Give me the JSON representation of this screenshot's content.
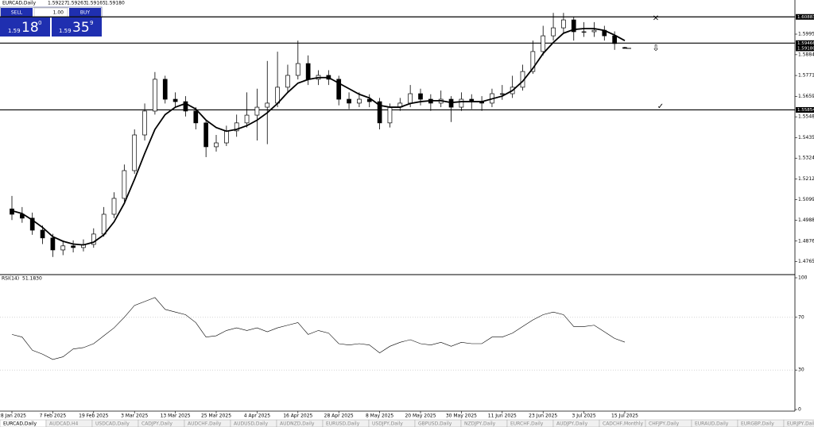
{
  "header": {
    "symbol": "EURCAD,Daily",
    "ohlc": [
      "1.59227",
      "1.59263",
      "1.59165",
      "1.59180"
    ]
  },
  "trade_panel": {
    "sell": "SELL",
    "buy": "BUY",
    "volume": "1.00",
    "sell_price": {
      "prefix": "1.59",
      "big": "18",
      "small": "0"
    },
    "buy_price": {
      "prefix": "1.59",
      "big": "35",
      "small": "9"
    }
  },
  "chart": {
    "type": "candlestick",
    "ylim": [
      1.4699,
      1.6171
    ],
    "yticks": [
      {
        "value": 1.5995,
        "label": "1.59950"
      },
      {
        "value": 1.5884,
        "label": "1.58840"
      },
      {
        "value": 1.57715,
        "label": "1.57715"
      },
      {
        "value": 1.5659,
        "label": "1.56590"
      },
      {
        "value": 1.5548,
        "label": "1.55480"
      },
      {
        "value": 1.54355,
        "label": "1.54355"
      },
      {
        "value": 1.53245,
        "label": "1.53245"
      },
      {
        "value": 1.5212,
        "label": "1.52120"
      },
      {
        "value": 1.50995,
        "label": "1.50995"
      },
      {
        "value": 1.49885,
        "label": "1.49885"
      },
      {
        "value": 1.4876,
        "label": "1.48760"
      },
      {
        "value": 1.4765,
        "label": "1.47650"
      }
    ],
    "levels": [
      {
        "value": 1.60883,
        "label": "1.60883"
      },
      {
        "value": 1.59466,
        "label": "1.59466"
      },
      {
        "value": 1.55854,
        "label": "1.55854"
      }
    ],
    "current_price": {
      "value": 1.5918,
      "label": "1.59180"
    },
    "dates": [
      "28 Jan 2025",
      null,
      null,
      null,
      "7 Feb 2025",
      null,
      null,
      null,
      "19 Feb 2025",
      null,
      null,
      null,
      "3 Mar 2025",
      null,
      null,
      null,
      "13 Mar 2025",
      null,
      null,
      null,
      "25 Mar 2025",
      null,
      null,
      null,
      "4 Apr 2025",
      null,
      null,
      null,
      "16 Apr 2025",
      null,
      null,
      null,
      "28 Apr 2025",
      null,
      null,
      null,
      "8 May 2025",
      null,
      null,
      null,
      "20 May 2025",
      null,
      null,
      null,
      "30 May 2025",
      null,
      null,
      null,
      "11 Jun 2025",
      null,
      null,
      null,
      "23 Jun 2025",
      null,
      null,
      null,
      "3 Jul 2025",
      null,
      null,
      null,
      "15 Jul 2025"
    ],
    "candles": [
      [
        1.505,
        1.512,
        1.499,
        1.5021
      ],
      [
        1.5021,
        1.506,
        1.4975,
        1.5
      ],
      [
        1.5,
        1.503,
        1.491,
        1.4935
      ],
      [
        1.4935,
        1.496,
        1.486,
        1.4893
      ],
      [
        1.4893,
        1.4915,
        1.479,
        1.4828
      ],
      [
        1.4828,
        1.488,
        1.48,
        1.485
      ],
      [
        1.485,
        1.488,
        1.4815,
        1.4841
      ],
      [
        1.4841,
        1.4885,
        1.482,
        1.4858
      ],
      [
        1.4858,
        1.4945,
        1.484,
        1.4914
      ],
      [
        1.4914,
        1.506,
        1.49,
        1.5021
      ],
      [
        1.5021,
        1.514,
        1.5,
        1.5107
      ],
      [
        1.5107,
        1.529,
        1.509,
        1.5257
      ],
      [
        1.5257,
        1.548,
        1.524,
        1.545
      ],
      [
        1.545,
        1.562,
        1.542,
        1.5579
      ],
      [
        1.5579,
        1.579,
        1.556,
        1.5751
      ],
      [
        1.5751,
        1.577,
        1.562,
        1.5643
      ],
      [
        1.5643,
        1.568,
        1.56,
        1.563
      ],
      [
        1.563,
        1.566,
        1.555,
        1.5579
      ],
      [
        1.5579,
        1.56,
        1.548,
        1.5515
      ],
      [
        1.5515,
        1.553,
        1.533,
        1.5386
      ],
      [
        1.5386,
        1.545,
        1.536,
        1.5407
      ],
      [
        1.5407,
        1.55,
        1.539,
        1.5472
      ],
      [
        1.5472,
        1.556,
        1.544,
        1.5515
      ],
      [
        1.5515,
        1.568,
        1.549,
        1.5557
      ],
      [
        1.5557,
        1.57,
        1.542,
        1.56
      ],
      [
        1.56,
        1.585,
        1.54,
        1.5622
      ],
      [
        1.5622,
        1.59,
        1.56,
        1.5708
      ],
      [
        1.5708,
        1.583,
        1.568,
        1.5772
      ],
      [
        1.5772,
        1.596,
        1.575,
        1.5836
      ],
      [
        1.5836,
        1.588,
        1.572,
        1.5751
      ],
      [
        1.5751,
        1.58,
        1.572,
        1.5772
      ],
      [
        1.5772,
        1.58,
        1.572,
        1.5751
      ],
      [
        1.5751,
        1.577,
        1.561,
        1.5643
      ],
      [
        1.5643,
        1.568,
        1.559,
        1.5622
      ],
      [
        1.5622,
        1.568,
        1.56,
        1.5643
      ],
      [
        1.5643,
        1.567,
        1.56,
        1.563
      ],
      [
        1.563,
        1.565,
        1.548,
        1.5515
      ],
      [
        1.5515,
        1.562,
        1.549,
        1.56
      ],
      [
        1.56,
        1.565,
        1.558,
        1.5622
      ],
      [
        1.5622,
        1.572,
        1.56,
        1.5673
      ],
      [
        1.5673,
        1.57,
        1.561,
        1.5643
      ],
      [
        1.5643,
        1.567,
        1.558,
        1.5622
      ],
      [
        1.5622,
        1.569,
        1.56,
        1.5643
      ],
      [
        1.5643,
        1.566,
        1.552,
        1.56
      ],
      [
        1.56,
        1.568,
        1.558,
        1.5643
      ],
      [
        1.5643,
        1.567,
        1.559,
        1.563
      ],
      [
        1.563,
        1.566,
        1.558,
        1.5622
      ],
      [
        1.5622,
        1.57,
        1.56,
        1.5673
      ],
      [
        1.5673,
        1.572,
        1.564,
        1.5673
      ],
      [
        1.5673,
        1.577,
        1.565,
        1.5708
      ],
      [
        1.5708,
        1.583,
        1.569,
        1.5793
      ],
      [
        1.5793,
        1.596,
        1.578,
        1.5901
      ],
      [
        1.5901,
        1.604,
        1.588,
        1.5986
      ],
      [
        1.5986,
        1.611,
        1.596,
        1.6029
      ],
      [
        1.6029,
        1.611,
        1.6,
        1.6072
      ],
      [
        1.6072,
        1.609,
        1.596,
        1.6008
      ],
      [
        1.6008,
        1.606,
        1.598,
        1.6008
      ],
      [
        1.6008,
        1.606,
        1.598,
        1.6016
      ],
      [
        1.6016,
        1.604,
        1.596,
        1.5986
      ],
      [
        1.5986,
        1.601,
        1.591,
        1.5944
      ],
      [
        1.59227,
        1.59263,
        1.59165,
        1.5918
      ]
    ],
    "ma": [
      1.504,
      1.5025,
      1.499,
      1.495,
      1.49,
      1.4875,
      1.486,
      1.4855,
      1.487,
      1.491,
      1.498,
      1.508,
      1.521,
      1.535,
      1.548,
      1.556,
      1.56,
      1.562,
      1.559,
      1.553,
      1.549,
      1.547,
      1.548,
      1.55,
      1.553,
      1.557,
      1.562,
      1.568,
      1.573,
      1.575,
      1.576,
      1.576,
      1.573,
      1.57,
      1.567,
      1.565,
      1.561,
      1.56,
      1.56,
      1.562,
      1.563,
      1.5635,
      1.5635,
      1.5625,
      1.563,
      1.563,
      1.563,
      1.5645,
      1.566,
      1.569,
      1.574,
      1.581,
      1.589,
      1.595,
      1.6,
      1.602,
      1.6025,
      1.6025,
      1.6015,
      1.599,
      1.596
    ],
    "rsi": {
      "name": "RSI(14)",
      "current": {
        "value": 51.183,
        "label": "51.1830"
      },
      "ylim": [
        0,
        100
      ],
      "yticks": [
        100,
        70,
        30,
        0
      ],
      "levels": [
        70,
        30
      ],
      "values": [
        57,
        55,
        45,
        42,
        38,
        40,
        46,
        47,
        50,
        56,
        62,
        70,
        79,
        82,
        85,
        76,
        74,
        72,
        66,
        55,
        56,
        60,
        62,
        60,
        62,
        59,
        62,
        64,
        66,
        57,
        60,
        58,
        50,
        49,
        50,
        49,
        43,
        48,
        51,
        53,
        50,
        49,
        51,
        48,
        51,
        50,
        50,
        55,
        55,
        58,
        63,
        68,
        72,
        74,
        72,
        63,
        63,
        64,
        59,
        54,
        51.183
      ]
    }
  },
  "tabs": [
    "EURCAD,Daily",
    "AUDCAD,H4",
    "USDCAD,Daily",
    "CADJPY,Daily",
    "AUDCHF,Daily",
    "AUDUSD,Daily",
    "AUDNZD,Daily",
    "EURUSD,Daily",
    "USDJPY,Daily",
    "GBPUSD,Daily",
    "NZDJPY,Daily",
    "EURCHF,Daily",
    "AUDJPY,Daily",
    "CADCHF,Monthly",
    "CHFJPY,Daily",
    "EURAUD,Daily",
    "EURGBP,Daily",
    "EURJPY,Daily"
  ]
}
